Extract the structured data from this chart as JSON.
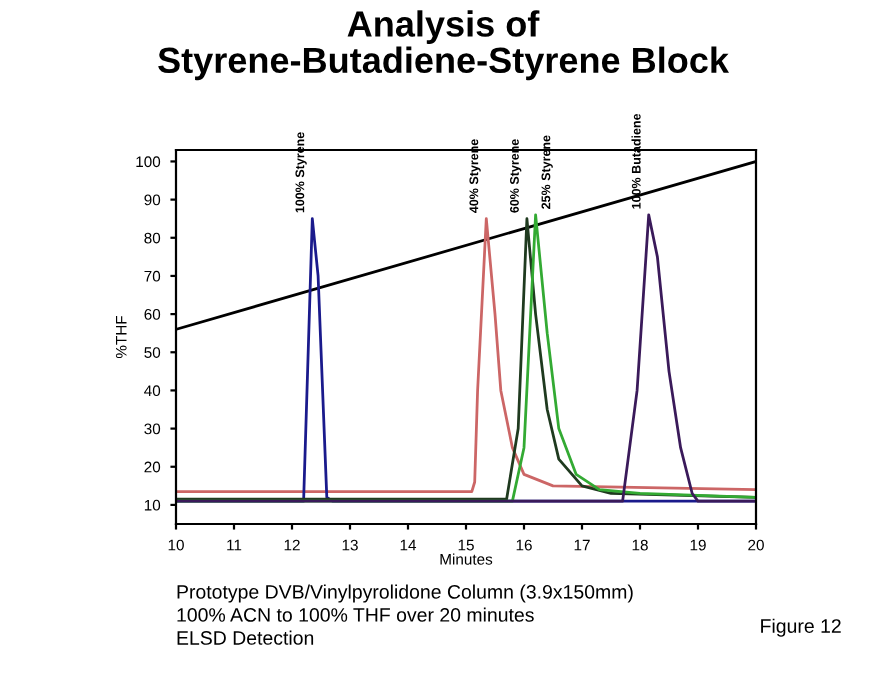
{
  "chart_data": {
    "type": "line",
    "title": "Analysis of\nStyrene-Butadiene-Styrene Block",
    "xlabel": "Minutes",
    "ylabel": "%THF",
    "xlim": [
      10,
      20
    ],
    "ylim": [
      5,
      103
    ],
    "xticks": [
      10,
      11,
      12,
      13,
      14,
      15,
      16,
      17,
      18,
      19,
      20
    ],
    "yticks": [
      10,
      20,
      30,
      40,
      50,
      60,
      70,
      80,
      90,
      100
    ],
    "grid": false,
    "legend": false,
    "marker": "none",
    "line_style": "solid",
    "series": [
      {
        "color": "#000000",
        "x": [
          10,
          20
        ],
        "values": [
          56,
          100
        ]
      },
      {
        "color": "#cc6666",
        "x": [
          10,
          15.1,
          15.15,
          15.2,
          15.35,
          15.5,
          15.6,
          15.8,
          16.0,
          16.5,
          20
        ],
        "values": [
          13.5,
          13.5,
          16,
          40,
          85,
          60,
          40,
          25,
          18,
          15,
          14
        ]
      },
      {
        "color": "#1a1a8c",
        "x": [
          10,
          12.2,
          12.35,
          12.45,
          12.6,
          12.7,
          20
        ],
        "values": [
          11,
          11,
          85,
          70,
          12,
          11,
          11
        ]
      },
      {
        "color": "#1f3a1f",
        "x": [
          10,
          15.7,
          15.9,
          16.05,
          16.2,
          16.4,
          16.6,
          17.0,
          17.5,
          20
        ],
        "values": [
          11.5,
          11.5,
          30,
          85,
          60,
          35,
          22,
          15,
          13,
          12
        ]
      },
      {
        "color": "#33aa33",
        "x": [
          10,
          15.8,
          16.0,
          16.2,
          16.4,
          16.6,
          16.9,
          17.3,
          18.0,
          20
        ],
        "values": [
          11,
          11,
          25,
          86,
          55,
          30,
          18,
          14,
          13,
          12
        ]
      },
      {
        "color": "#3a1a5a",
        "x": [
          10,
          17.7,
          17.95,
          18.15,
          18.3,
          18.5,
          18.7,
          18.9,
          19.0,
          20
        ],
        "values": [
          11,
          11,
          40,
          86,
          75,
          45,
          25,
          13,
          11,
          11
        ]
      }
    ],
    "annotations": [
      {
        "text": "100% Styrene",
        "x": 12.35,
        "y": 85
      },
      {
        "text": "40% Styrene",
        "x": 15.35,
        "y": 85
      },
      {
        "text": "60% Styrene",
        "x": 16.05,
        "y": 85
      },
      {
        "text": "25% Styrene",
        "x": 16.2,
        "y": 86
      },
      {
        "text": "100% Butadiene",
        "x": 18.15,
        "y": 86
      },
      "Prototype DVB/Vinylpyrolidone Column (3.9x150mm)\n100% ACN to 100% THF over 20 minutes\nELSD Detection",
      "Figure 12"
    ]
  }
}
